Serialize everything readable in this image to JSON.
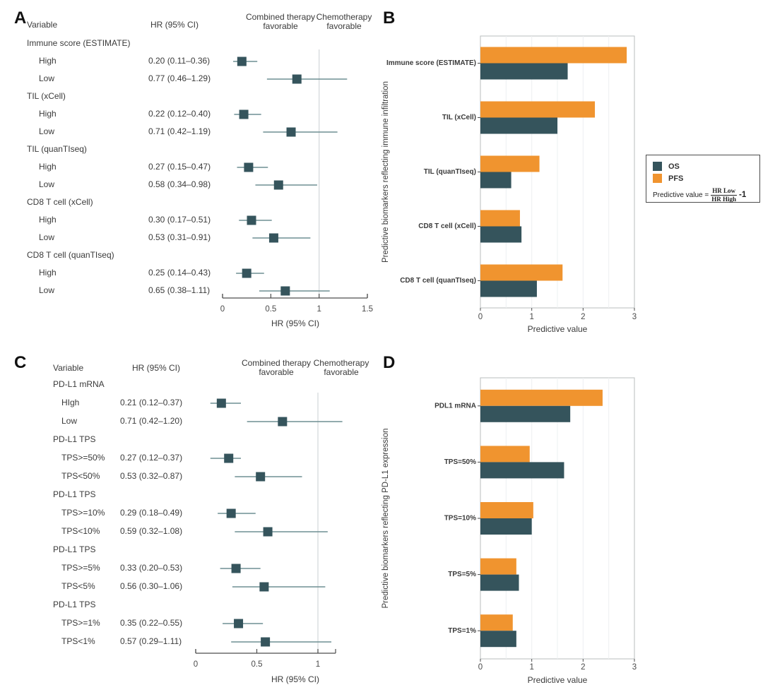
{
  "panels": {
    "a_label": "A",
    "b_label": "B",
    "c_label": "C",
    "d_label": "D"
  },
  "figure": {
    "background": "#ffffff",
    "colors": {
      "os": "#35545c",
      "pfs": "#f0942f",
      "marker": "#35545c",
      "ci_line": "#6f8f93",
      "ref_line": "#d6dadb",
      "grid": "#edf0f1",
      "plot_border": "#b8bcbd",
      "axis": "#4d4d4d",
      "text": "#3a3a3a"
    },
    "legend": {
      "os_label": "OS",
      "pfs_label": "PFS",
      "formula_prefix": "Predictive value =",
      "formula_numerator": "HR Low",
      "formula_denominator": "HR High",
      "formula_suffix": "-1"
    }
  },
  "chart_data": [
    {
      "id": "A",
      "type": "table",
      "subtype": "forest-plot",
      "columns": {
        "variable": "Variable",
        "hr": "HR (95% CI)"
      },
      "region_labels": {
        "left": [
          "Combined therapy",
          "favorable"
        ],
        "right": [
          "Chemotherapy",
          "favorable"
        ]
      },
      "xlabel": "HR (95% CI)",
      "xlim": [
        0,
        1.5
      ],
      "x_ticks": [
        0,
        0.5,
        1,
        1.5
      ],
      "x_tick_labels": [
        "0",
        "0.5",
        "1",
        "1.5"
      ],
      "ref_line": 1,
      "rows": [
        {
          "kind": "group",
          "label": "Immune score (ESTIMATE)"
        },
        {
          "kind": "item",
          "label": "High",
          "hr_text": "0.20 (0.11–0.36)",
          "hr": 0.2,
          "lo": 0.11,
          "hi": 0.36
        },
        {
          "kind": "item",
          "label": "Low",
          "hr_text": "0.77 (0.46–1.29)",
          "hr": 0.77,
          "lo": 0.46,
          "hi": 1.29
        },
        {
          "kind": "group",
          "label": "TIL (xCell)"
        },
        {
          "kind": "item",
          "label": "High",
          "hr_text": "0.22 (0.12–0.40)",
          "hr": 0.22,
          "lo": 0.12,
          "hi": 0.4
        },
        {
          "kind": "item",
          "label": "Low",
          "hr_text": "0.71 (0.42–1.19)",
          "hr": 0.71,
          "lo": 0.42,
          "hi": 1.19
        },
        {
          "kind": "group",
          "label": "TIL (quanTIseq)"
        },
        {
          "kind": "item",
          "label": "High",
          "hr_text": "0.27 (0.15–0.47)",
          "hr": 0.27,
          "lo": 0.15,
          "hi": 0.47
        },
        {
          "kind": "item",
          "label": "Low",
          "hr_text": "0.58 (0.34–0.98)",
          "hr": 0.58,
          "lo": 0.34,
          "hi": 0.98
        },
        {
          "kind": "group",
          "label": "CD8 T cell (xCell)"
        },
        {
          "kind": "item",
          "label": "High",
          "hr_text": "0.30 (0.17–0.51)",
          "hr": 0.3,
          "lo": 0.17,
          "hi": 0.51
        },
        {
          "kind": "item",
          "label": "Low",
          "hr_text": "0.53 (0.31–0.91)",
          "hr": 0.53,
          "lo": 0.31,
          "hi": 0.91
        },
        {
          "kind": "group",
          "label": "CD8 T cell (quanTIseq)"
        },
        {
          "kind": "item",
          "label": "High",
          "hr_text": "0.25 (0.14–0.43)",
          "hr": 0.25,
          "lo": 0.14,
          "hi": 0.43
        },
        {
          "kind": "item",
          "label": "Low",
          "hr_text": "0.65 (0.38–1.11)",
          "hr": 0.65,
          "lo": 0.38,
          "hi": 1.11
        }
      ]
    },
    {
      "id": "B",
      "type": "bar",
      "orientation": "horizontal",
      "ylabel": "Predictive biomarkers reflecting immune infiltration",
      "xlabel": "Predictive value",
      "xlim": [
        0,
        3
      ],
      "x_ticks": [
        0,
        1,
        2,
        3
      ],
      "grid_step": 0.5,
      "grid": true,
      "legend_position": "right",
      "categories": [
        "Immune score (ESTIMATE)",
        "TIL (xCell)",
        "TIL (quanTIseq)",
        "CD8 T cell (xCell)",
        "CD8 T cell (quanTIseq)"
      ],
      "series": [
        {
          "name": "PFS",
          "color": "#f0942f",
          "values": [
            2.85,
            2.23,
            1.15,
            0.77,
            1.6
          ]
        },
        {
          "name": "OS",
          "color": "#35545c",
          "values": [
            1.7,
            1.5,
            0.6,
            0.8,
            1.1
          ]
        }
      ]
    },
    {
      "id": "C",
      "type": "table",
      "subtype": "forest-plot",
      "columns": {
        "variable": "Variable",
        "hr": "HR (95% CI)"
      },
      "region_labels": {
        "left": [
          "Combined therapy",
          "favorable"
        ],
        "right": [
          "Chemotherapy",
          "favorable"
        ]
      },
      "xlabel": "HR (95% CI)",
      "xlim": [
        0,
        1.15
      ],
      "x_ticks": [
        0,
        0.5,
        1
      ],
      "x_tick_labels": [
        "0",
        "0.5",
        "1"
      ],
      "ref_line": 1,
      "rows": [
        {
          "kind": "group",
          "label": "PD-L1 mRNA"
        },
        {
          "kind": "item",
          "label": "HIgh",
          "hr_text": "0.21 (0.12–0.37)",
          "hr": 0.21,
          "lo": 0.12,
          "hi": 0.37
        },
        {
          "kind": "item",
          "label": "Low",
          "hr_text": "0.71 (0.42–1.20)",
          "hr": 0.71,
          "lo": 0.42,
          "hi": 1.2
        },
        {
          "kind": "group",
          "label": "PD-L1 TPS"
        },
        {
          "kind": "item",
          "label": "TPS>=50%",
          "hr_text": "0.27 (0.12–0.37)",
          "hr": 0.27,
          "lo": 0.12,
          "hi": 0.37
        },
        {
          "kind": "item",
          "label": "TPS<50%",
          "hr_text": "0.53 (0.32–0.87)",
          "hr": 0.53,
          "lo": 0.32,
          "hi": 0.87
        },
        {
          "kind": "group",
          "label": "PD-L1 TPS"
        },
        {
          "kind": "item",
          "label": "TPS>=10%",
          "hr_text": "0.29 (0.18–0.49)",
          "hr": 0.29,
          "lo": 0.18,
          "hi": 0.49
        },
        {
          "kind": "item",
          "label": "TPS<10%",
          "hr_text": "0.59 (0.32–1.08)",
          "hr": 0.59,
          "lo": 0.32,
          "hi": 1.08
        },
        {
          "kind": "group",
          "label": "PD-L1 TPS"
        },
        {
          "kind": "item",
          "label": "TPS>=5%",
          "hr_text": "0.33 (0.20–0.53)",
          "hr": 0.33,
          "lo": 0.2,
          "hi": 0.53
        },
        {
          "kind": "item",
          "label": "TPS<5%",
          "hr_text": "0.56 (0.30–1.06)",
          "hr": 0.56,
          "lo": 0.3,
          "hi": 1.06
        },
        {
          "kind": "group",
          "label": "PD-L1 TPS"
        },
        {
          "kind": "item",
          "label": "TPS>=1%",
          "hr_text": "0.35 (0.22–0.55)",
          "hr": 0.35,
          "lo": 0.22,
          "hi": 0.55
        },
        {
          "kind": "item",
          "label": "TPS<1%",
          "hr_text": "0.57 (0.29–1.11)",
          "hr": 0.57,
          "lo": 0.29,
          "hi": 1.11
        }
      ]
    },
    {
      "id": "D",
      "type": "bar",
      "orientation": "horizontal",
      "ylabel": "Predictive biomarkers reflecting PD-L1 expression",
      "xlabel": "Predictive value",
      "xlim": [
        0,
        3
      ],
      "x_ticks": [
        0,
        1,
        2,
        3
      ],
      "grid_step": 0.5,
      "grid": true,
      "categories": [
        "PDL1 mRNA",
        "TPS=50%",
        "TPS=10%",
        "TPS=5%",
        "TPS=1%"
      ],
      "series": [
        {
          "name": "PFS",
          "color": "#f0942f",
          "values": [
            2.38,
            0.96,
            1.03,
            0.7,
            0.63
          ]
        },
        {
          "name": "OS",
          "color": "#35545c",
          "values": [
            1.75,
            1.63,
            1.0,
            0.75,
            0.7
          ]
        }
      ]
    }
  ]
}
